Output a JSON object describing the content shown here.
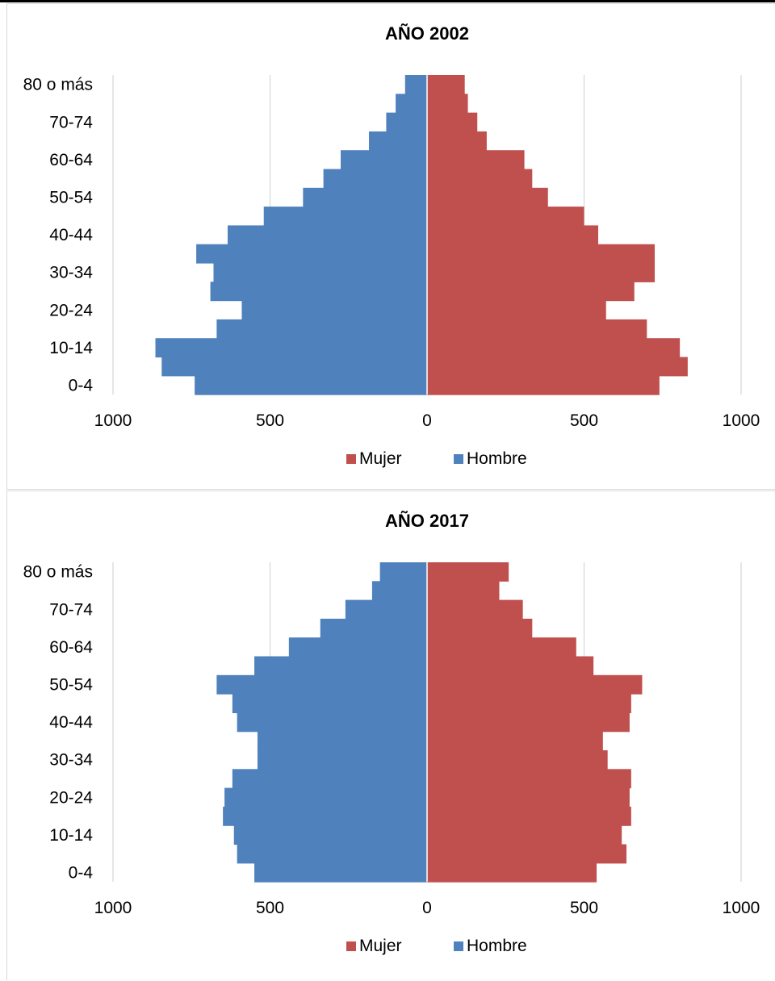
{
  "chart_data": [
    {
      "type": "bar",
      "title": "AÑO 2002",
      "categories": [
        "0-4",
        "5-9",
        "10-14",
        "15-19",
        "20-24",
        "25-29",
        "30-34",
        "35-39",
        "40-44",
        "45-49",
        "50-54",
        "55-59",
        "60-64",
        "65-69",
        "70-74",
        "75-79",
        "80 o más"
      ],
      "category_labels_shown": [
        "0-4",
        "10-14",
        "20-24",
        "30-34",
        "40-44",
        "50-54",
        "60-64",
        "70-74",
        "80 o más"
      ],
      "series": [
        {
          "name": "Mujer",
          "color": "#c0504d",
          "values": [
            740,
            830,
            805,
            700,
            570,
            660,
            725,
            725,
            545,
            500,
            385,
            335,
            310,
            190,
            160,
            130,
            120
          ]
        },
        {
          "name": "Hombre",
          "color": "#4f81bd",
          "values": [
            740,
            845,
            865,
            670,
            590,
            690,
            680,
            735,
            635,
            520,
            395,
            330,
            275,
            185,
            130,
            100,
            70
          ]
        }
      ],
      "x_ticks": [
        "1000",
        "500",
        "0",
        "500",
        "1000"
      ],
      "xlim": [
        -1000,
        1000
      ],
      "grid": true,
      "legend": "bottom"
    },
    {
      "type": "bar",
      "title": "AÑO 2017",
      "categories": [
        "0-4",
        "5-9",
        "10-14",
        "15-19",
        "20-24",
        "25-29",
        "30-34",
        "35-39",
        "40-44",
        "45-49",
        "50-54",
        "55-59",
        "60-64",
        "65-69",
        "70-74",
        "75-79",
        "80 o más"
      ],
      "category_labels_shown": [
        "0-4",
        "10-14",
        "20-24",
        "30-34",
        "40-44",
        "50-54",
        "60-64",
        "70-74",
        "80 o más"
      ],
      "series": [
        {
          "name": "Mujer",
          "color": "#c0504d",
          "values": [
            540,
            635,
            620,
            650,
            645,
            650,
            575,
            560,
            645,
            650,
            685,
            530,
            475,
            335,
            305,
            230,
            260
          ]
        },
        {
          "name": "Hombre",
          "color": "#4f81bd",
          "values": [
            550,
            605,
            615,
            650,
            645,
            620,
            540,
            540,
            605,
            620,
            670,
            550,
            440,
            340,
            260,
            175,
            150
          ]
        }
      ],
      "x_ticks": [
        "1000",
        "500",
        "0",
        "500",
        "1000"
      ],
      "xlim": [
        -1000,
        1000
      ],
      "grid": true,
      "legend": "bottom"
    }
  ]
}
